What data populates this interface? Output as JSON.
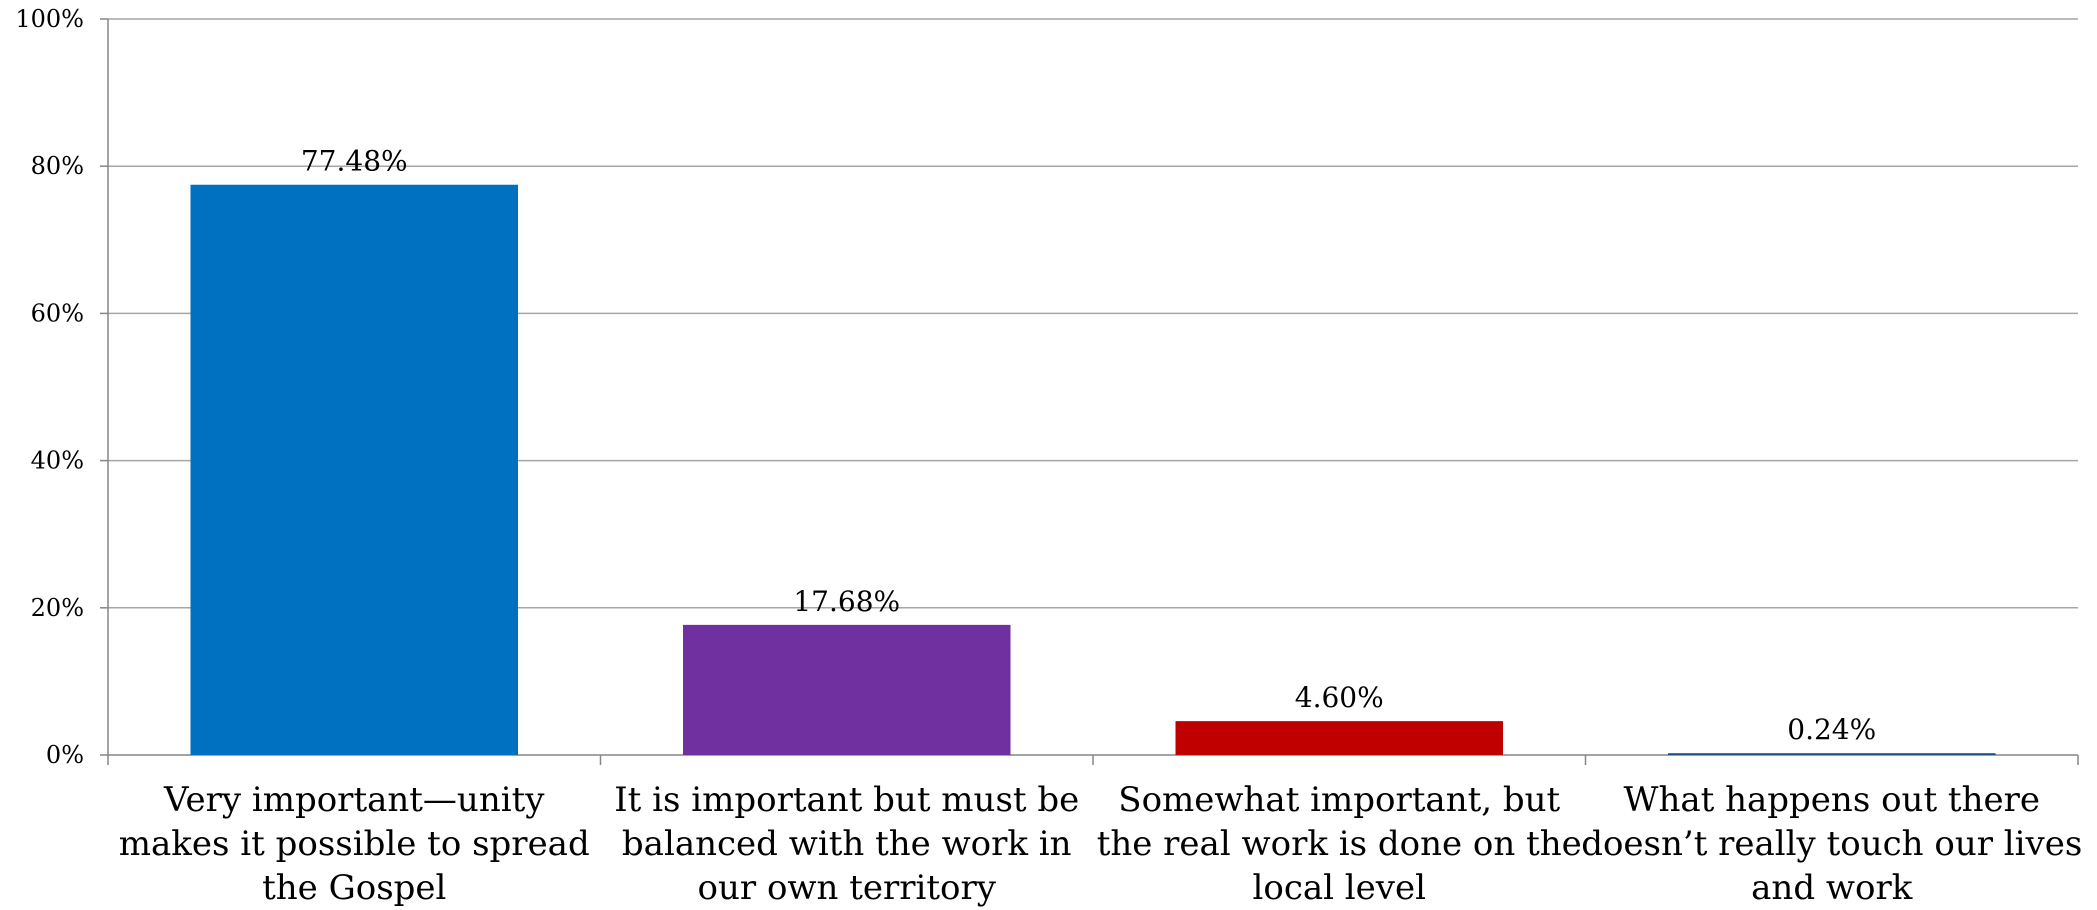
{
  "chart_data": {
    "type": "bar",
    "title": "",
    "xlabel": "",
    "ylabel": "",
    "ylim": [
      0,
      100
    ],
    "y_ticks": [
      "0%",
      "20%",
      "40%",
      "60%",
      "80%",
      "100%"
    ],
    "grid": true,
    "categories": [
      "Very important—unity makes it possible to spread the Gospel",
      "It is important but must be balanced with the work in our own territory",
      "Somewhat important, but the real work is done on the local level",
      "What happens out there doesn’t really touch our lives and work"
    ],
    "category_label_lines": [
      [
        "Very important—unity",
        "makes it possible to spread",
        "the Gospel"
      ],
      [
        "It is important but must be",
        "balanced with the work in",
        "our own territory"
      ],
      [
        "Somewhat important, but",
        "the real work is done on the",
        "local level"
      ],
      [
        "What happens out there",
        "doesn’t really touch our lives",
        "and work"
      ]
    ],
    "values": [
      77.48,
      17.68,
      4.6,
      0.24
    ],
    "data_labels": [
      "77.48%",
      "17.68%",
      "4.60%",
      "0.24%"
    ],
    "colors": [
      "#0070C0",
      "#7030A0",
      "#C00000",
      "#1F497D"
    ]
  }
}
